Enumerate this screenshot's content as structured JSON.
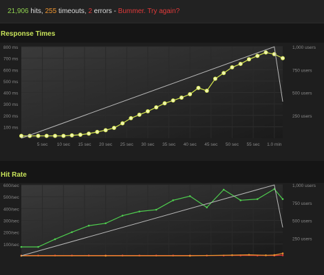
{
  "status": {
    "hits": "21,906",
    "hits_label": " hits, ",
    "timeouts": "255",
    "timeouts_label": " timeouts, ",
    "errors": "2",
    "errors_label": " errors - ",
    "message": "Bummer. Try again?",
    "colors": {
      "hits": "#8fd14f",
      "timeouts": "#f0952f",
      "errors": "#e03a3a",
      "message": "#e03a3a"
    }
  },
  "response_section": {
    "title": "Response Times"
  },
  "hitrate_section": {
    "title": "Hit Rate"
  },
  "chart_data": [
    {
      "type": "line",
      "title": "Response Times",
      "x_ticks": [
        "5 sec",
        "10 sec",
        "15 sec",
        "20 sec",
        "25 sec",
        "30 sec",
        "35 sec",
        "40 sec",
        "45 sec",
        "50 sec",
        "55 sec",
        "1.0 min"
      ],
      "y_ticks": [
        "100 ms",
        "200 ms",
        "300 ms",
        "400 ms",
        "500 ms",
        "600 ms",
        "700 ms",
        "800 ms"
      ],
      "y2_ticks": [
        "250 users",
        "500 users",
        "750 users",
        "1,000 users"
      ],
      "ylim": [
        0,
        800
      ],
      "y2lim": [
        0,
        1000
      ],
      "xlim": [
        0,
        62
      ],
      "grid": true,
      "series": [
        {
          "axis": "y",
          "color": "#d7e84d",
          "x": [
            0,
            2,
            4,
            6,
            8,
            10,
            12,
            14,
            16,
            18,
            20,
            22,
            24,
            26,
            28,
            30,
            32,
            34,
            36,
            38,
            40,
            42,
            44,
            46,
            48,
            50,
            52,
            54,
            56,
            58,
            60,
            62
          ],
          "values": [
            20,
            20,
            20,
            20,
            20,
            20,
            25,
            30,
            40,
            55,
            70,
            90,
            130,
            175,
            205,
            235,
            270,
            305,
            330,
            355,
            385,
            440,
            415,
            520,
            570,
            620,
            650,
            690,
            720,
            750,
            735,
            700
          ]
        },
        {
          "axis": "y2",
          "color": "#bbbbbb",
          "x": [
            0,
            60,
            62
          ],
          "values": [
            0,
            1000,
            400
          ]
        }
      ]
    },
    {
      "type": "line",
      "title": "Hit Rate",
      "x_ticks": [],
      "y_ticks": [
        "100/sec",
        "200/sec",
        "300/sec",
        "400/sec",
        "500/sec",
        "600/sec"
      ],
      "y2_ticks": [
        "250 users",
        "500 users",
        "750 users",
        "1,000 users"
      ],
      "ylim": [
        0,
        600
      ],
      "y2lim": [
        0,
        1000
      ],
      "xlim": [
        0,
        62
      ],
      "grid": true,
      "series": [
        {
          "axis": "y",
          "color": "#4fcf4f",
          "x": [
            0,
            4,
            8,
            12,
            16,
            20,
            24,
            28,
            32,
            36,
            40,
            44,
            48,
            52,
            56,
            60,
            62
          ],
          "values": [
            75,
            75,
            140,
            200,
            255,
            275,
            340,
            375,
            390,
            470,
            505,
            410,
            560,
            470,
            480,
            565,
            480
          ]
        },
        {
          "axis": "y",
          "color": "#e03a3a",
          "x": [
            0,
            4,
            8,
            12,
            16,
            20,
            24,
            28,
            32,
            36,
            40,
            44,
            48,
            52,
            56,
            60,
            62
          ],
          "values": [
            2,
            2,
            2,
            2,
            2,
            2,
            2,
            2,
            2,
            2,
            2,
            2,
            2,
            3,
            2,
            2,
            4
          ]
        },
        {
          "axis": "y",
          "color": "#f0952f",
          "x": [
            0,
            20,
            40,
            50,
            54,
            58,
            60,
            62
          ],
          "values": [
            0,
            0,
            0,
            5,
            8,
            4,
            6,
            20
          ]
        },
        {
          "axis": "y2",
          "color": "#bbbbbb",
          "x": [
            0,
            60,
            62
          ],
          "values": [
            0,
            1000,
            400
          ]
        }
      ]
    }
  ]
}
